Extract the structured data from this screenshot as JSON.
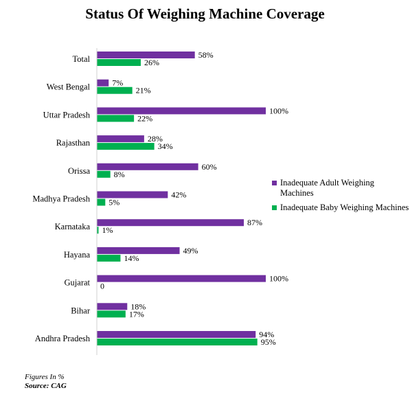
{
  "chart_data": {
    "type": "bar",
    "orientation": "horizontal",
    "title": "Status Of Weighing Machine Coverage",
    "categories": [
      "Total",
      "West Bengal",
      "Uttar Pradesh",
      "Rajasthan",
      "Orissa",
      "Madhya Pradesh",
      "Karnataka",
      "Hayana",
      "Gujarat",
      "Bihar",
      "Andhra Pradesh"
    ],
    "series": [
      {
        "name": "Inadequate Adult Weighing Machines",
        "color": "#7030a0",
        "values": [
          58,
          7,
          100,
          28,
          60,
          42,
          87,
          49,
          100,
          18,
          94
        ],
        "labels": [
          "58%",
          "7%",
          "100%",
          "28%",
          "60%",
          "42%",
          "87%",
          "49%",
          "100%",
          "18%",
          "94%"
        ]
      },
      {
        "name": "Inadequate Baby Weighing Machines",
        "color": "#00b050",
        "values": [
          26,
          21,
          22,
          34,
          8,
          5,
          1,
          14,
          0,
          17,
          95
        ],
        "labels": [
          "26%",
          "21%",
          "22%",
          "34%",
          "8%",
          "5%",
          "1%",
          "14%",
          "0",
          "17%",
          "95%"
        ]
      }
    ],
    "xlim": [
      0,
      100
    ],
    "grid": false,
    "legend_position": "right"
  },
  "footnote": {
    "figures": "Figures In %",
    "source": "Source: CAG"
  }
}
